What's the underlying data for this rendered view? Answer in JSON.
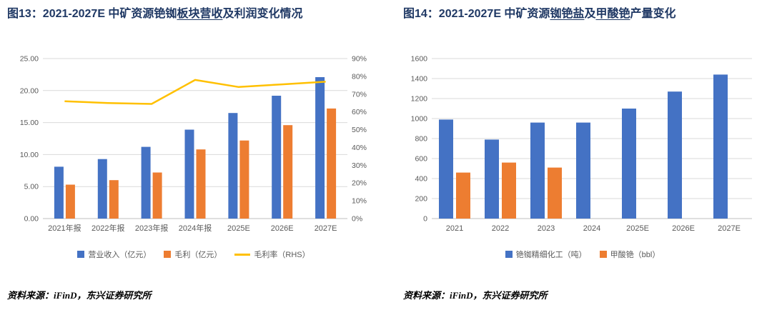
{
  "page": {
    "background": "#FFFFFF"
  },
  "colors": {
    "bar_blue": "#4472C4",
    "bar_orange": "#ED7D31",
    "line_yellow": "#FFC000",
    "title_navy": "#1F3864",
    "axis_text": "#595959",
    "gridline": "#D9D9D9"
  },
  "chart_data": [
    {
      "id": "figure13",
      "type": "bar+line",
      "title_full": "图13：2021-2027E 中矿资源铯铷板块营收及利润变化情况",
      "title_segments": [
        {
          "text": "图13：2021-2027E 中矿资源铯铷",
          "underline": false
        },
        {
          "text": "板块营收",
          "underline": true
        },
        {
          "text": "及利润变化情况",
          "underline": false
        }
      ],
      "categories": [
        "2021年报",
        "2022年报",
        "2023年报",
        "2024年报",
        "2025E",
        "2026E",
        "2027E"
      ],
      "bar_series": [
        {
          "name": "营业收入（亿元）",
          "color": "#4472C4",
          "values": [
            8.1,
            9.3,
            11.2,
            13.9,
            16.5,
            19.2,
            22.1
          ]
        },
        {
          "name": "毛利（亿元）",
          "color": "#ED7D31",
          "values": [
            5.3,
            6.0,
            7.2,
            10.8,
            12.2,
            14.6,
            17.2
          ]
        }
      ],
      "line_series": [
        {
          "name": "毛利率（RHS）",
          "color": "#FFC000",
          "axis": "right",
          "values": [
            66,
            65,
            64.5,
            78,
            74,
            75.5,
            77
          ]
        }
      ],
      "left_axis": {
        "min": 0,
        "max": 25,
        "step": 5,
        "labels": [
          "0.00",
          "5.00",
          "10.00",
          "15.00",
          "20.00",
          "25.00"
        ]
      },
      "right_axis": {
        "min": 0,
        "max": 90,
        "step": 10,
        "labels": [
          "0%",
          "10%",
          "20%",
          "30%",
          "40%",
          "50%",
          "60%",
          "70%",
          "80%",
          "90%"
        ]
      },
      "grid": true,
      "legend_position": "bottom",
      "source": "资料来源：iFinD，东兴证券研究所"
    },
    {
      "id": "figure14",
      "type": "bar",
      "title_full": "图14：2021-2027E 中矿资源铷铯盐及甲酸铯产量变化",
      "title_segments": [
        {
          "text": "图14：2021-2027E 中矿资源",
          "underline": false
        },
        {
          "text": "铷铯盐",
          "underline": true
        },
        {
          "text": "及",
          "underline": false
        },
        {
          "text": "甲酸铯",
          "underline": true
        },
        {
          "text": "产量变化",
          "underline": false
        }
      ],
      "categories": [
        "2021",
        "2022",
        "2023",
        "2024",
        "2025E",
        "2026E",
        "2027E"
      ],
      "bar_series": [
        {
          "name": "铯铷精细化工（吨）",
          "color": "#4472C4",
          "values": [
            990,
            790,
            960,
            960,
            1100,
            1270,
            1440
          ]
        },
        {
          "name": "甲酸铯（bbl）",
          "color": "#ED7D31",
          "values": [
            460,
            560,
            510,
            0,
            0,
            0,
            0
          ]
        }
      ],
      "left_axis": {
        "min": 0,
        "max": 1600,
        "step": 200,
        "labels": [
          "0",
          "200",
          "400",
          "600",
          "800",
          "1000",
          "1200",
          "1400",
          "1600"
        ]
      },
      "grid": true,
      "legend_position": "bottom",
      "source": "资料来源：iFinD，东兴证券研究所"
    }
  ]
}
